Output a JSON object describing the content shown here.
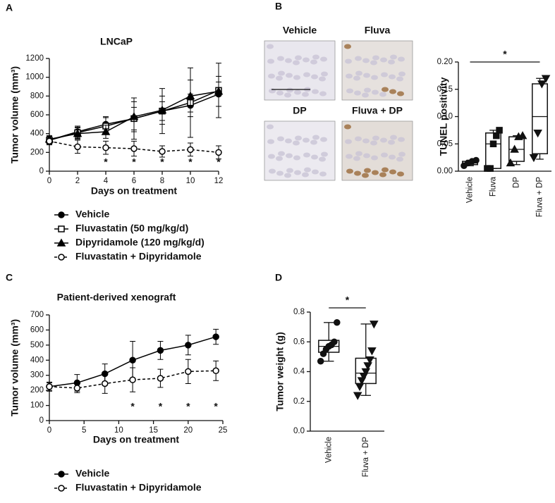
{
  "chart_data": [
    {
      "type": "line",
      "panel": "A",
      "title": "LNCaP",
      "x_label": "Days on treatment",
      "y_label": "Tumor volume (mm³)",
      "x": [
        0,
        2,
        4,
        6,
        8,
        10,
        12
      ],
      "xlim": [
        0,
        12
      ],
      "xticks": [
        0,
        2,
        4,
        6,
        8,
        10,
        12
      ],
      "ylim": [
        0,
        1200
      ],
      "yticks": [
        0,
        200,
        400,
        600,
        800,
        1000,
        1200
      ],
      "series": [
        {
          "name": "Vehicle",
          "color": "#000000",
          "marker": "circle",
          "filled": true,
          "dashed": false,
          "values": [
            330,
            420,
            500,
            560,
            640,
            700,
            820
          ],
          "errors": [
            40,
            60,
            80,
            120,
            100,
            120,
            130
          ]
        },
        {
          "name": "Fluvastatin (50 mg/kg/d)",
          "color": "#000000",
          "marker": "square",
          "filled": false,
          "dashed": false,
          "values": [
            330,
            410,
            480,
            560,
            640,
            730,
            860
          ],
          "errors": [
            40,
            60,
            90,
            220,
            240,
            370,
            290
          ]
        },
        {
          "name": "Dipyridamole (120 mg/kg/d)",
          "color": "#000000",
          "marker": "triangle",
          "filled": true,
          "dashed": false,
          "values": [
            340,
            400,
            420,
            580,
            650,
            800,
            850
          ],
          "errors": [
            40,
            60,
            70,
            160,
            150,
            170,
            160
          ]
        },
        {
          "name": "Fluvastatin + Dipyridamole",
          "color": "#000000",
          "marker": "circle",
          "filled": false,
          "dashed": true,
          "values": [
            320,
            260,
            250,
            240,
            210,
            230,
            200
          ],
          "errors": [
            40,
            70,
            70,
            80,
            60,
            70,
            70
          ]
        }
      ],
      "significance": {
        "x": [
          4,
          6,
          8,
          10,
          12
        ],
        "label": "*"
      }
    },
    {
      "type": "box",
      "panel": "B",
      "image_labels": [
        "Vehicle",
        "Fluva",
        "DP",
        "Fluva + DP"
      ],
      "y_label": "TUNEL positivity",
      "categories": [
        "Vehicle",
        "Fluva",
        "DP",
        "Fluva + DP"
      ],
      "ylim": [
        0,
        0.2
      ],
      "yticks": [
        {
          "value": 0,
          "label": "0.00"
        },
        0.05,
        {
          "value": 0.1,
          "label": "0.10"
        },
        0.15,
        {
          "value": 0.2,
          "label": "0.20"
        }
      ],
      "markers": [
        "circle",
        "square",
        "triangle",
        "triangle-down"
      ],
      "boxes": [
        {
          "min": 0.01,
          "q1": 0.012,
          "median": 0.015,
          "q3": 0.018,
          "max": 0.02,
          "points": [
            0.01,
            0.015,
            0.018,
            0.02
          ]
        },
        {
          "min": 0.005,
          "q1": 0.005,
          "median": 0.05,
          "q3": 0.07,
          "max": 0.075,
          "points": [
            0.005,
            0.005,
            0.05,
            0.065,
            0.075
          ]
        },
        {
          "min": 0.012,
          "q1": 0.018,
          "median": 0.04,
          "q3": 0.063,
          "max": 0.065,
          "points": [
            0.015,
            0.04,
            0.063,
            0.065
          ]
        },
        {
          "min": 0.022,
          "q1": 0.032,
          "median": 0.1,
          "q3": 0.16,
          "max": 0.17,
          "points": [
            0.025,
            0.07,
            0.16,
            0.17
          ]
        }
      ],
      "significance_label": "*"
    },
    {
      "type": "line",
      "panel": "C",
      "title": "Patient-derived xenograft",
      "x_label": "Days on treatment",
      "y_label": "Tumor volume (mm³)",
      "x": [
        0,
        4,
        8,
        12,
        16,
        20,
        24
      ],
      "xlim": [
        0,
        25
      ],
      "xticks": [
        0,
        5,
        10,
        15,
        20,
        25
      ],
      "ylim": [
        0,
        700
      ],
      "yticks": [
        0,
        100,
        200,
        300,
        400,
        500,
        600,
        700
      ],
      "series": [
        {
          "name": "Vehicle",
          "color": "#000000",
          "marker": "circle",
          "filled": true,
          "dashed": false,
          "values": [
            225,
            250,
            310,
            400,
            465,
            500,
            555
          ],
          "errors": [
            30,
            55,
            65,
            125,
            60,
            65,
            50
          ]
        },
        {
          "name": "Fluvastatin + Dipyridamole",
          "color": "#000000",
          "marker": "circle",
          "filled": false,
          "dashed": true,
          "values": [
            225,
            215,
            245,
            270,
            280,
            325,
            330
          ],
          "errors": [
            25,
            30,
            65,
            80,
            60,
            80,
            65
          ]
        }
      ],
      "significance": {
        "x": [
          12,
          16,
          20,
          24
        ],
        "label": "*"
      }
    },
    {
      "type": "box",
      "panel": "D",
      "y_label": "Tumor weight  (g)",
      "categories": [
        "Vehicle",
        "Fluva + DP"
      ],
      "ylim": [
        0,
        0.8
      ],
      "yticks": [
        {
          "value": 0,
          "label": "0.0"
        },
        0.2,
        0.4,
        0.6,
        0.8
      ],
      "markers": [
        "circle",
        "triangle-down"
      ],
      "boxes": [
        {
          "min": 0.47,
          "q1": 0.53,
          "median": 0.57,
          "q3": 0.61,
          "max": 0.73,
          "points": [
            0.47,
            0.52,
            0.55,
            0.57,
            0.58,
            0.6,
            0.73
          ]
        },
        {
          "min": 0.24,
          "q1": 0.32,
          "median": 0.39,
          "q3": 0.49,
          "max": 0.72,
          "points": [
            0.24,
            0.3,
            0.34,
            0.37,
            0.4,
            0.44,
            0.48,
            0.54,
            0.72
          ]
        }
      ],
      "significance_label": "*"
    }
  ]
}
